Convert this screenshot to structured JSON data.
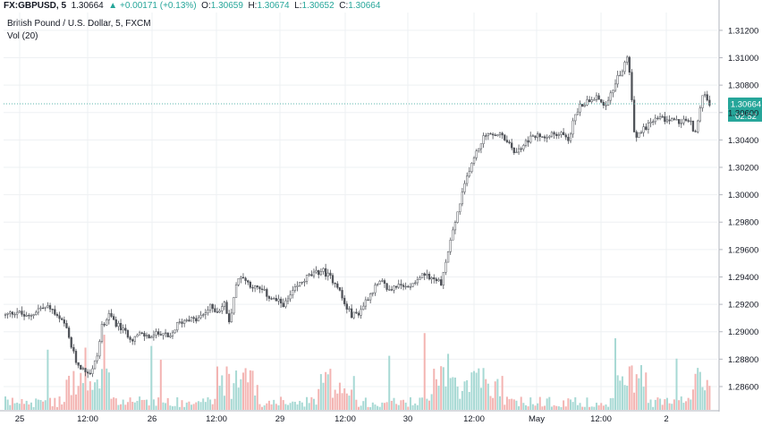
{
  "header": {
    "symbol": "FX:GBPUSD, 5",
    "last": "1.30664",
    "change": "+0.00171 (+0.13%)",
    "o_label": "O:",
    "o": "1.30659",
    "h_label": "H:",
    "h": "1.30674",
    "l_label": "L:",
    "l": "1.30652",
    "c_label": "C:",
    "c": "1.30664"
  },
  "chart_title": "British Pound / U.S. Dollar, 5, FXCM",
  "volume_label": "Vol (20)",
  "price_badge": "1.30664",
  "countdown_badge": "02:52",
  "colors": {
    "up": "#26a69a",
    "down": "#ef5350",
    "candle": "#4f5258",
    "vol_up": "#a7d9d4",
    "vol_down": "#f3b4b2",
    "grid": "#eef0f3",
    "price_line": "#5db7ad"
  },
  "chart_data": {
    "type": "candlestick",
    "y_ticks": [
      "1.31200",
      "1.31000",
      "1.30800",
      "1.30600",
      "1.30400",
      "1.30200",
      "1.30000",
      "1.29800",
      "1.29600",
      "1.29400",
      "1.29200",
      "1.29000",
      "1.28800",
      "1.28600"
    ],
    "ylim": [
      1.2843,
      1.3133
    ],
    "x_ticks": [
      "25",
      "12:00",
      "26",
      "12:00",
      "29",
      "12:00",
      "30",
      "12:00",
      "May",
      "12:00",
      "2"
    ],
    "last_price": 1.30664,
    "grid": true,
    "close_path": [
      [
        0.0,
        1.2912
      ],
      [
        1.5,
        1.2915
      ],
      [
        3.0,
        1.291
      ],
      [
        4.5,
        1.2917
      ],
      [
        6.0,
        1.2918
      ],
      [
        7.0,
        1.291
      ],
      [
        8.0,
        1.2905
      ],
      [
        8.8,
        1.289
      ],
      [
        9.5,
        1.2878
      ],
      [
        10.5,
        1.2872
      ],
      [
        11.5,
        1.287
      ],
      [
        12.3,
        1.2882
      ],
      [
        13.0,
        1.2905
      ],
      [
        14.0,
        1.2912
      ],
      [
        15.0,
        1.2905
      ],
      [
        16.0,
        1.29
      ],
      [
        17.0,
        1.2895
      ],
      [
        18.0,
        1.2898
      ],
      [
        19.5,
        1.2896
      ],
      [
        21.0,
        1.29
      ],
      [
        22.0,
        1.2894
      ],
      [
        23.0,
        1.2905
      ],
      [
        24.5,
        1.291
      ],
      [
        25.5,
        1.2908
      ],
      [
        26.5,
        1.2912
      ],
      [
        27.5,
        1.2918
      ],
      [
        28.5,
        1.2915
      ],
      [
        29.5,
        1.2921
      ],
      [
        30.0,
        1.2905
      ],
      [
        30.8,
        1.293
      ],
      [
        31.5,
        1.2942
      ],
      [
        32.5,
        1.2936
      ],
      [
        33.5,
        1.2932
      ],
      [
        34.5,
        1.293
      ],
      [
        35.5,
        1.2925
      ],
      [
        36.5,
        1.2922
      ],
      [
        37.5,
        1.292
      ],
      [
        38.5,
        1.2928
      ],
      [
        39.5,
        1.2935
      ],
      [
        40.5,
        1.294
      ],
      [
        41.5,
        1.2942
      ],
      [
        42.5,
        1.2945
      ],
      [
        43.5,
        1.294
      ],
      [
        44.5,
        1.2935
      ],
      [
        45.5,
        1.292
      ],
      [
        46.5,
        1.2912
      ],
      [
        47.5,
        1.2914
      ],
      [
        48.5,
        1.2924
      ],
      [
        49.5,
        1.2932
      ],
      [
        50.5,
        1.2936
      ],
      [
        51.5,
        1.293
      ],
      [
        52.5,
        1.2934
      ],
      [
        53.5,
        1.2932
      ],
      [
        54.5,
        1.2935
      ],
      [
        55.5,
        1.294
      ],
      [
        56.5,
        1.2942
      ],
      [
        57.5,
        1.2938
      ],
      [
        58.5,
        1.2936
      ],
      [
        59.0,
        1.2948
      ],
      [
        59.8,
        1.2968
      ],
      [
        60.6,
        1.2985
      ],
      [
        61.4,
        1.3002
      ],
      [
        62.2,
        1.3018
      ],
      [
        63.0,
        1.3028
      ],
      [
        63.8,
        1.3038
      ],
      [
        64.6,
        1.3046
      ],
      [
        65.4,
        1.3042
      ],
      [
        66.2,
        1.3045
      ],
      [
        67.0,
        1.304
      ],
      [
        67.8,
        1.3035
      ],
      [
        68.6,
        1.303
      ],
      [
        69.4,
        1.3036
      ],
      [
        70.2,
        1.304
      ],
      [
        71.0,
        1.3043
      ],
      [
        72.0,
        1.3042
      ],
      [
        73.0,
        1.3045
      ],
      [
        74.0,
        1.3043
      ],
      [
        75.0,
        1.3045
      ],
      [
        75.6,
        1.304
      ],
      [
        76.4,
        1.3058
      ],
      [
        77.2,
        1.3065
      ],
      [
        78.0,
        1.3068
      ],
      [
        78.8,
        1.3072
      ],
      [
        79.6,
        1.307
      ],
      [
        80.4,
        1.3066
      ],
      [
        81.2,
        1.3072
      ],
      [
        82.0,
        1.3085
      ],
      [
        82.8,
        1.309
      ],
      [
        83.4,
        1.3101
      ],
      [
        84.0,
        1.3082
      ],
      [
        84.2,
        1.305
      ],
      [
        84.8,
        1.3042
      ],
      [
        85.6,
        1.3048
      ],
      [
        86.4,
        1.3052
      ],
      [
        87.2,
        1.3055
      ],
      [
        88.0,
        1.3056
      ],
      [
        88.8,
        1.3054
      ],
      [
        89.6,
        1.3056
      ],
      [
        90.4,
        1.3052
      ],
      [
        91.2,
        1.3055
      ],
      [
        92.0,
        1.3052
      ],
      [
        92.6,
        1.3045
      ],
      [
        93.2,
        1.3062
      ],
      [
        93.8,
        1.3076
      ],
      [
        94.5,
        1.3066
      ]
    ],
    "volume_max_hint": "relative"
  }
}
